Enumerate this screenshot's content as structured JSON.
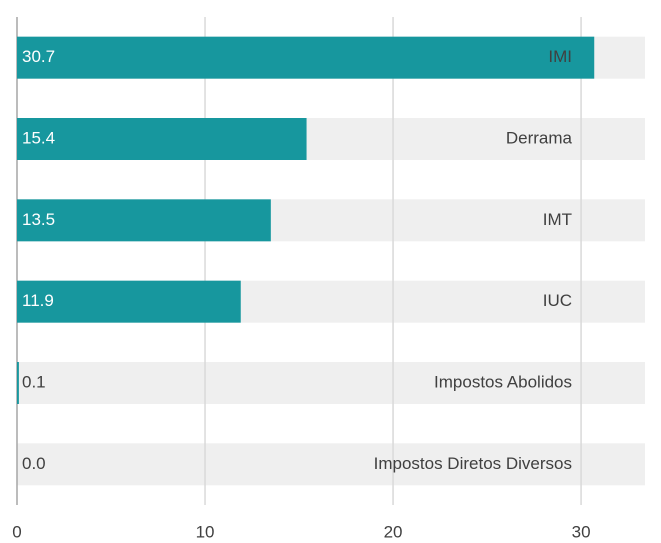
{
  "chart_data": {
    "type": "barh",
    "categories": [
      "IMI",
      "Derrama",
      "IMT",
      "IUC",
      "Impostos Abolidos",
      "Impostos Diretos Diversos"
    ],
    "values": [
      30.7,
      15.4,
      13.5,
      11.9,
      0.1,
      0
    ],
    "value_labels": [
      "30.7",
      "15.4",
      "13.5",
      "11.9",
      "0.1",
      "0.0"
    ],
    "color": "#17979e",
    "xlim": [
      0,
      33.4
    ],
    "xticks": [
      0,
      10,
      20,
      30
    ],
    "grid": true
  }
}
